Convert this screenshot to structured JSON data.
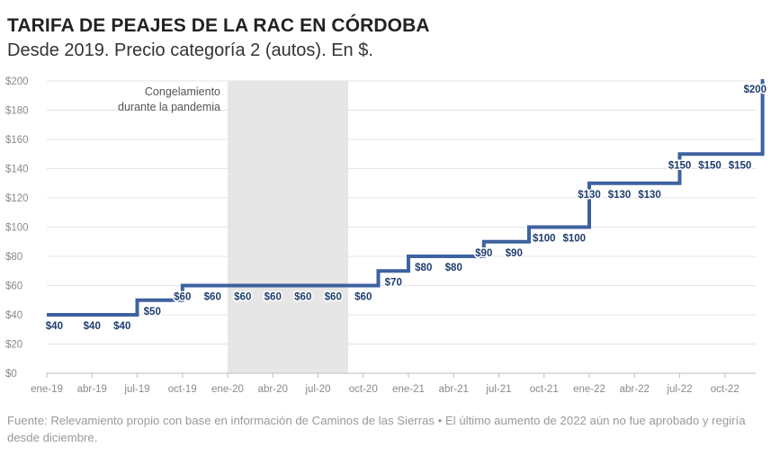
{
  "header": {
    "title": "TARIFA DE PEAJES DE LA RAC EN CÓRDOBA",
    "subtitle": "Desde 2019. Precio categoría 2 (autos). En $."
  },
  "footer": {
    "source": "Fuente: Relevamiento propio con base en información de Caminos de las Sierras • El último aumento de 2022 aún no fue aprobado y regiría desde diciembre."
  },
  "chart_data": {
    "type": "line",
    "step": true,
    "title": "TARIFA DE PEAJES DE LA RAC EN CÓRDOBA",
    "subtitle": "Desde 2019. Precio categoría 2 (autos). En $.",
    "xlabel": "",
    "ylabel": "",
    "y_unit": "$",
    "ylim": [
      0,
      200
    ],
    "y_ticks": [
      0,
      20,
      40,
      60,
      80,
      100,
      120,
      140,
      160,
      180,
      200
    ],
    "y_tick_labels": [
      "$0",
      "$20",
      "$40",
      "$60",
      "$80",
      "$100",
      "$120",
      "$140",
      "$160",
      "$180",
      "$200"
    ],
    "x_range_months": [
      0,
      47.6
    ],
    "x_ticks": [
      {
        "m": 0,
        "label": "ene-19"
      },
      {
        "m": 3,
        "label": "abr-19"
      },
      {
        "m": 6,
        "label": "jul-19"
      },
      {
        "m": 9,
        "label": "oct-19"
      },
      {
        "m": 12,
        "label": "ene-20"
      },
      {
        "m": 15,
        "label": "abr-20"
      },
      {
        "m": 18,
        "label": "jul-20"
      },
      {
        "m": 21,
        "label": "oct-20"
      },
      {
        "m": 24,
        "label": "ene-21"
      },
      {
        "m": 27,
        "label": "abr-21"
      },
      {
        "m": 30,
        "label": "jul-21"
      },
      {
        "m": 33,
        "label": "oct-21"
      },
      {
        "m": 36,
        "label": "ene-22"
      },
      {
        "m": 39,
        "label": "abr-22"
      },
      {
        "m": 42,
        "label": "jul-22"
      },
      {
        "m": 45,
        "label": "oct-22"
      }
    ],
    "series": [
      {
        "name": "Tarifa categoría 2",
        "color": "#3e62a0",
        "steps": [
          {
            "x0": 0,
            "x1": 6,
            "y": 40
          },
          {
            "x0": 6,
            "x1": 9,
            "y": 50
          },
          {
            "x0": 9,
            "x1": 22,
            "y": 60
          },
          {
            "x0": 22,
            "x1": 24,
            "y": 70
          },
          {
            "x0": 24,
            "x1": 29,
            "y": 80
          },
          {
            "x0": 29,
            "x1": 32,
            "y": 90
          },
          {
            "x0": 32,
            "x1": 36,
            "y": 100
          },
          {
            "x0": 36,
            "x1": 42,
            "y": 130
          },
          {
            "x0": 42,
            "x1": 47.5,
            "y": 150
          },
          {
            "x0": 47.5,
            "x1": 47.6,
            "y": 200
          }
        ]
      }
    ],
    "data_labels": [
      {
        "m": 0.5,
        "value": 40,
        "text": "$40"
      },
      {
        "m": 3,
        "value": 40,
        "text": "$40"
      },
      {
        "m": 5,
        "value": 40,
        "text": "$40"
      },
      {
        "m": 7,
        "value": 50,
        "text": "$50"
      },
      {
        "m": 9,
        "value": 60,
        "text": "$60"
      },
      {
        "m": 11,
        "value": 60,
        "text": "$60"
      },
      {
        "m": 13,
        "value": 60,
        "text": "$60"
      },
      {
        "m": 15,
        "value": 60,
        "text": "$60"
      },
      {
        "m": 17,
        "value": 60,
        "text": "$60"
      },
      {
        "m": 19,
        "value": 60,
        "text": "$60"
      },
      {
        "m": 21,
        "value": 60,
        "text": "$60"
      },
      {
        "m": 23,
        "value": 70,
        "text": "$70"
      },
      {
        "m": 25,
        "value": 80,
        "text": "$80"
      },
      {
        "m": 27,
        "value": 80,
        "text": "$80"
      },
      {
        "m": 29,
        "value": 90,
        "text": "$90"
      },
      {
        "m": 31,
        "value": 90,
        "text": "$90"
      },
      {
        "m": 33,
        "value": 100,
        "text": "$100"
      },
      {
        "m": 35,
        "value": 100,
        "text": "$100"
      },
      {
        "m": 36,
        "value": 130,
        "text": "$130"
      },
      {
        "m": 38,
        "value": 130,
        "text": "$130"
      },
      {
        "m": 40,
        "value": 130,
        "text": "$130"
      },
      {
        "m": 42,
        "value": 150,
        "text": "$150"
      },
      {
        "m": 44,
        "value": 150,
        "text": "$150"
      },
      {
        "m": 46,
        "value": 150,
        "text": "$150"
      },
      {
        "m": 47,
        "value": 200,
        "text": "$200"
      }
    ],
    "shaded_region": {
      "m0": 12,
      "m1": 20,
      "label_lines": [
        "Congelamiento",
        "durante la pandemia"
      ]
    },
    "grid": true
  }
}
